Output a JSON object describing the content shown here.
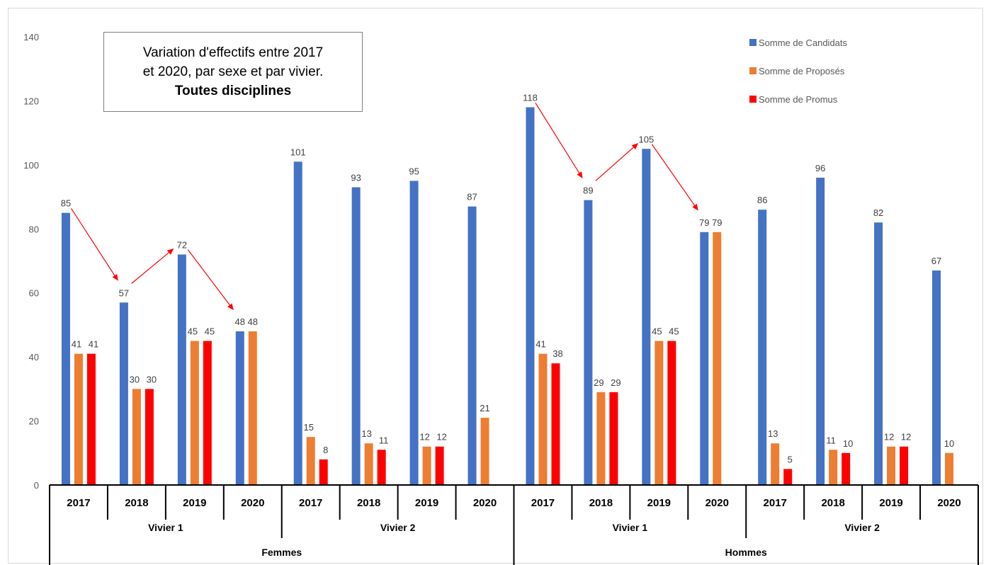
{
  "chart_data": {
    "type": "bar",
    "title_lines": [
      "Variation d'effectifs entre 2017",
      "et 2020, par sexe et par vivier."
    ],
    "title_bold": "Toutes disciplines",
    "ylim": [
      0,
      140
    ],
    "yticks": [
      0,
      20,
      40,
      60,
      80,
      100,
      120,
      140
    ],
    "years": [
      "2017",
      "2018",
      "2019",
      "2020",
      "2017",
      "2018",
      "2019",
      "2020",
      "2017",
      "2018",
      "2019",
      "2020",
      "2017",
      "2018",
      "2019",
      "2020"
    ],
    "viviers": [
      "Vivier 1",
      "Vivier 2",
      "Vivier 1",
      "Vivier 2"
    ],
    "sexes": [
      "Femmes",
      "Hommes"
    ],
    "series": [
      {
        "name": "Somme de Candidats",
        "color": "#4472C4",
        "values": [
          85,
          57,
          72,
          48,
          101,
          93,
          95,
          87,
          118,
          89,
          105,
          79,
          86,
          96,
          82,
          67
        ]
      },
      {
        "name": "Somme de Proposés",
        "color": "#ED7D31",
        "values": [
          41,
          30,
          45,
          48,
          15,
          13,
          12,
          21,
          41,
          29,
          45,
          79,
          13,
          11,
          12,
          10
        ]
      },
      {
        "name": "Somme de Promus",
        "color": "#FF0000",
        "values": [
          41,
          30,
          45,
          null,
          8,
          11,
          12,
          null,
          38,
          29,
          45,
          null,
          5,
          10,
          12,
          null
        ]
      }
    ],
    "annotations": {
      "arrow_color": "#FF0000",
      "description": "Red arrows linking Candidats values 2017→2018→2019→2020 within Vivier 1 for Femmes and Hommes"
    },
    "grid": false,
    "legend_position": "top-right"
  }
}
